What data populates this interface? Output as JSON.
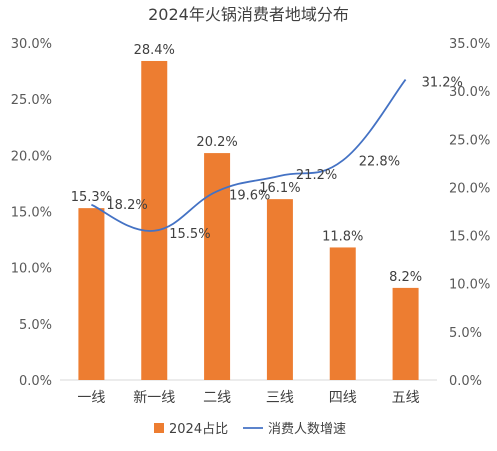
{
  "chart_data": {
    "type": "bar",
    "title": "2024年火锅消费者地域分布",
    "categories": [
      "一线",
      "新一线",
      "二线",
      "三线",
      "四线",
      "五线"
    ],
    "series": [
      {
        "name": "2024占比",
        "type": "bar",
        "axis": "left",
        "values": [
          15.3,
          28.4,
          20.2,
          16.1,
          11.8,
          8.2
        ],
        "labels": [
          "15.3%",
          "28.4%",
          "20.2%",
          "16.1%",
          "11.8%",
          "8.2%"
        ]
      },
      {
        "name": "消费人数增速",
        "type": "line",
        "axis": "right",
        "values": [
          18.2,
          15.5,
          19.6,
          21.2,
          22.8,
          31.2
        ],
        "labels": [
          "18.2%",
          "15.5%",
          "19.6%",
          "21.2%",
          "22.8%",
          "31.2%"
        ]
      }
    ],
    "ylim_left": [
      0,
      30
    ],
    "ylim_right": [
      0,
      35
    ],
    "yticks_left": [
      "0.0%",
      "5.0%",
      "10.0%",
      "15.0%",
      "20.0%",
      "25.0%",
      "30.0%"
    ],
    "yticks_right": [
      "0.0%",
      "5.0%",
      "10.0%",
      "15.0%",
      "20.0%",
      "25.0%",
      "30.0%",
      "35.0%"
    ],
    "legend": "bottom",
    "grid": false,
    "colors": {
      "bar": "#ED7D31",
      "line": "#4472C4",
      "text": "#404040",
      "axis": "#D9D9D9"
    }
  }
}
